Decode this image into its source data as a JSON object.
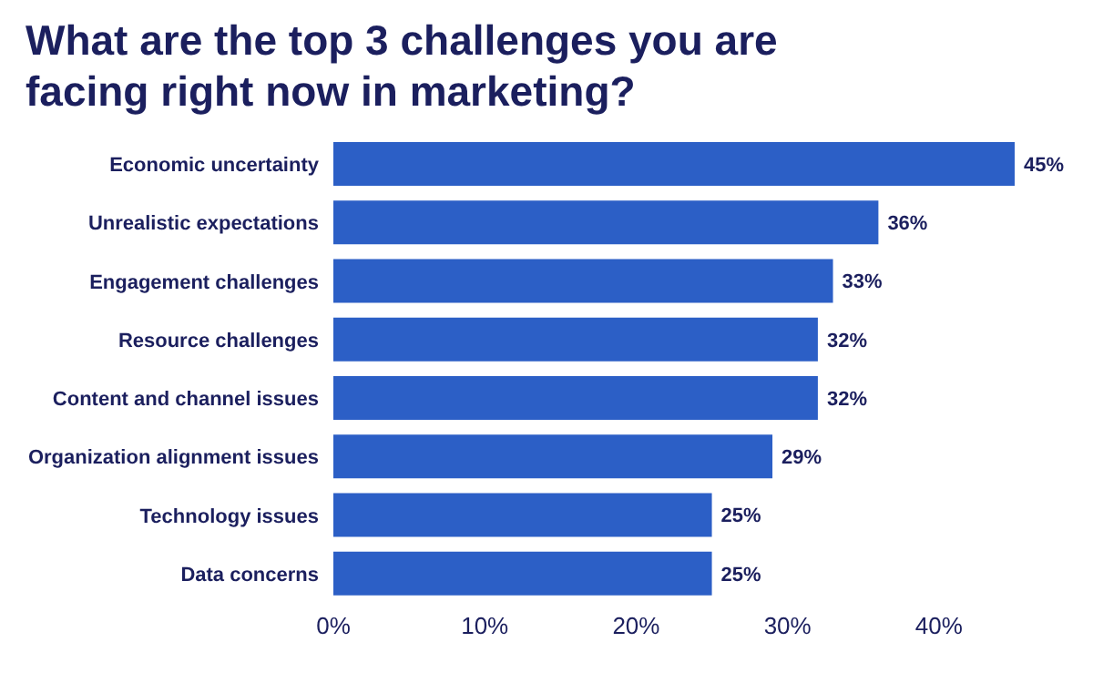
{
  "chart_data": {
    "type": "bar",
    "orientation": "horizontal",
    "title": "What are the top 3 challenges you are facing right now in marketing?",
    "categories": [
      "Economic uncertainty",
      "Unrealistic expectations",
      "Engagement challenges",
      "Resource challenges",
      "Content and channel issues",
      "Organization alignment issues",
      "Technology issues",
      "Data concerns"
    ],
    "values": [
      45,
      36,
      33,
      32,
      32,
      29,
      25,
      25
    ],
    "value_labels": [
      "45%",
      "36%",
      "33%",
      "32%",
      "32%",
      "29%",
      "25%",
      "25%"
    ],
    "color": "#2c5fc6",
    "xlim": [
      0,
      45
    ],
    "xticks": [
      {
        "value": 0,
        "label": "0%"
      },
      {
        "value": 10,
        "label": "10%"
      },
      {
        "value": 20,
        "label": "20%"
      },
      {
        "value": 30,
        "label": "30%"
      },
      {
        "value": 40,
        "label": "40%"
      }
    ],
    "grid": false
  }
}
